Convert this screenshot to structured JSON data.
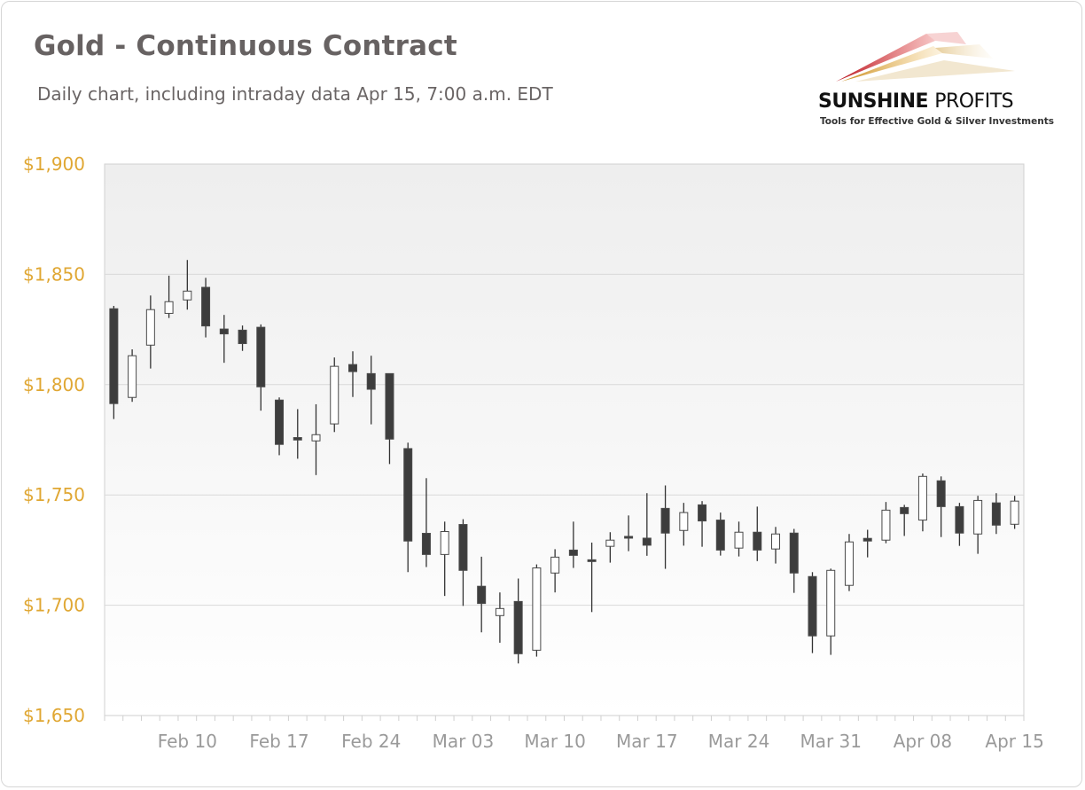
{
  "header": {
    "title": "Gold - Continuous Contract",
    "subtitle": "Daily chart, including intraday data Apr 15, 7:00 a.m. EDT"
  },
  "logo": {
    "name_bold": "SUNSHINE",
    "name_light": "PROFITS",
    "tagline": "Tools for Effective Gold & Silver Investments"
  },
  "colors": {
    "up_fill": "#ffffff",
    "down_fill": "#3d3d3d",
    "candle_stroke": "#4a4a4a",
    "ytick": "#e0a733",
    "xtick": "#9a9a9a",
    "grid": "#d9d9d9"
  },
  "chart_data": {
    "type": "candlestick",
    "title": "Gold - Continuous Contract",
    "xlabel": "",
    "ylabel": "",
    "ylim": [
      1650,
      1900
    ],
    "yticks": [
      1650,
      1700,
      1750,
      1800,
      1850,
      1900
    ],
    "ytick_labels": [
      "$1,650",
      "$1,700",
      "$1,750",
      "$1,800",
      "$1,850",
      "$1,900"
    ],
    "grid": true,
    "x_tick_labels": {
      "Feb 10": "Feb 10",
      "Feb 17": "Feb 17",
      "Feb 24": "Feb 24",
      "Mar 03": "Mar 03",
      "Mar 10": "Mar 10",
      "Mar 17": "Mar 17",
      "Mar 24": "Mar 24",
      "Mar 31": "Mar 31",
      "Apr 08": "Apr 08",
      "Apr 15": "Apr 15"
    },
    "dates": [
      "Feb 04",
      "Feb 05",
      "Feb 08",
      "Feb 09",
      "Feb 10",
      "Feb 11",
      "Feb 12",
      "Feb 15",
      "Feb 16",
      "Feb 17",
      "Feb 18",
      "Feb 19",
      "Feb 22",
      "Feb 23",
      "Feb 24",
      "Feb 25",
      "Feb 26",
      "Mar 01",
      "Mar 02",
      "Mar 03",
      "Mar 04",
      "Mar 05",
      "Mar 08",
      "Mar 09",
      "Mar 10",
      "Mar 11",
      "Mar 12",
      "Mar 15",
      "Mar 16",
      "Mar 17",
      "Mar 18",
      "Mar 19",
      "Mar 22",
      "Mar 23",
      "Mar 24",
      "Mar 25",
      "Mar 26",
      "Mar 29",
      "Mar 30",
      "Mar 31",
      "Apr 01",
      "Apr 05",
      "Apr 06",
      "Apr 07",
      "Apr 08",
      "Apr 09",
      "Apr 12",
      "Apr 13",
      "Apr 14",
      "Apr 15"
    ],
    "ohlc": [
      [
        1834.4,
        1835.7,
        1784.4,
        1791.4
      ],
      [
        1794.2,
        1816.0,
        1792.2,
        1813.1
      ],
      [
        1817.9,
        1840.4,
        1807.3,
        1834.0
      ],
      [
        1832.3,
        1849.4,
        1830.2,
        1837.6
      ],
      [
        1838.4,
        1856.5,
        1834.0,
        1842.4
      ],
      [
        1844.1,
        1848.4,
        1821.4,
        1826.6
      ],
      [
        1825.2,
        1831.6,
        1809.9,
        1823.0
      ],
      [
        1824.7,
        1826.8,
        1815.3,
        1818.6
      ],
      [
        1826.0,
        1827.3,
        1788.2,
        1799.0
      ],
      [
        1793.0,
        1794.2,
        1768.0,
        1772.9
      ],
      [
        1776.0,
        1788.9,
        1766.4,
        1774.9
      ],
      [
        1774.5,
        1791.1,
        1759.0,
        1777.3
      ],
      [
        1782.2,
        1812.3,
        1778.5,
        1808.3
      ],
      [
        1809.1,
        1815.1,
        1794.4,
        1805.9
      ],
      [
        1805.0,
        1813.1,
        1782.0,
        1797.9
      ],
      [
        1805.0,
        1805.0,
        1764.0,
        1775.3
      ],
      [
        1771.0,
        1773.7,
        1715.0,
        1729.1
      ],
      [
        1732.6,
        1757.6,
        1717.3,
        1723.0
      ],
      [
        1723.0,
        1737.9,
        1704.2,
        1733.4
      ],
      [
        1736.6,
        1739.0,
        1699.7,
        1715.8
      ],
      [
        1708.6,
        1722.0,
        1687.7,
        1700.8
      ],
      [
        1695.3,
        1705.8,
        1683.0,
        1698.5
      ],
      [
        1701.7,
        1712.1,
        1673.6,
        1678.0
      ],
      [
        1679.6,
        1718.5,
        1676.7,
        1716.9
      ],
      [
        1714.6,
        1725.4,
        1705.8,
        1721.8
      ],
      [
        1725.0,
        1737.9,
        1716.9,
        1722.6
      ],
      [
        1720.6,
        1728.4,
        1696.9,
        1719.9
      ],
      [
        1726.7,
        1733.1,
        1719.3,
        1729.5
      ],
      [
        1731.2,
        1740.7,
        1724.5,
        1730.6
      ],
      [
        1730.4,
        1750.8,
        1722.4,
        1727.2
      ],
      [
        1743.9,
        1754.3,
        1716.5,
        1732.7
      ],
      [
        1733.9,
        1746.4,
        1727.0,
        1742.0
      ],
      [
        1745.5,
        1747.2,
        1726.5,
        1738.2
      ],
      [
        1738.6,
        1742.0,
        1722.5,
        1725.0
      ],
      [
        1725.9,
        1737.9,
        1722.1,
        1733.1
      ],
      [
        1733.1,
        1744.7,
        1720.0,
        1725.0
      ],
      [
        1725.5,
        1735.5,
        1718.9,
        1732.3
      ],
      [
        1732.7,
        1734.6,
        1705.6,
        1714.6
      ],
      [
        1713.0,
        1715.0,
        1678.3,
        1686.1
      ],
      [
        1686.1,
        1716.6,
        1677.5,
        1715.8
      ],
      [
        1709.0,
        1732.3,
        1706.4,
        1728.7
      ],
      [
        1730.3,
        1734.2,
        1721.7,
        1729.1
      ],
      [
        1729.5,
        1746.8,
        1728.1,
        1743.1
      ],
      [
        1744.3,
        1745.5,
        1731.4,
        1741.5
      ],
      [
        1738.6,
        1759.7,
        1733.5,
        1758.4
      ],
      [
        1756.4,
        1758.4,
        1730.9,
        1744.7
      ],
      [
        1744.7,
        1746.4,
        1726.9,
        1732.7
      ],
      [
        1732.3,
        1749.6,
        1723.3,
        1747.5
      ],
      [
        1746.4,
        1750.8,
        1732.3,
        1736.3
      ],
      [
        1736.7,
        1749.6,
        1734.6,
        1747.2
      ]
    ]
  }
}
